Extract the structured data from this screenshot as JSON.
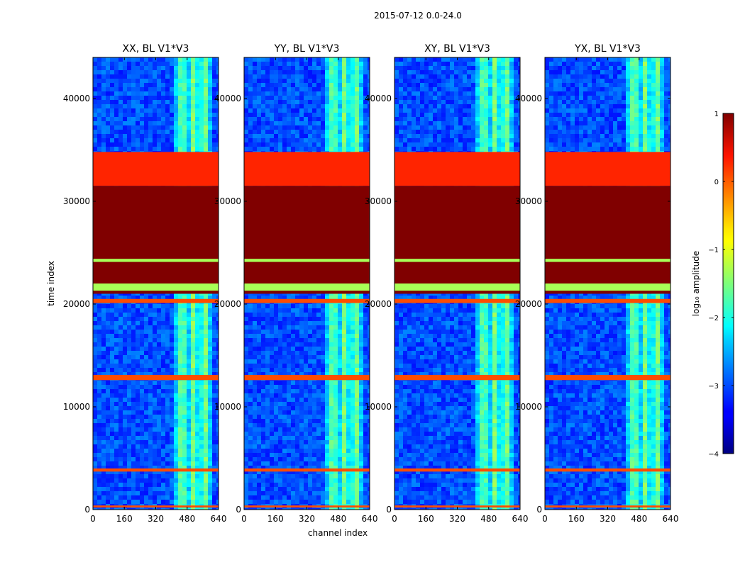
{
  "figure": {
    "suptitle": "2015-07-12 0.0-24.0",
    "xlabel": "channel index",
    "ylabel": "time index"
  },
  "chart_data": {
    "type": "heatmap",
    "x_range": [
      0,
      640
    ],
    "y_range": [
      0,
      44000
    ],
    "xticks": [
      0,
      160,
      320,
      480,
      640
    ],
    "yticks": [
      0,
      10000,
      20000,
      30000,
      40000
    ],
    "panels": [
      {
        "title": "XX, BL V1*V3",
        "pol": "XX"
      },
      {
        "title": "YY, BL V1*V3",
        "pol": "YY"
      },
      {
        "title": "XY, BL V1*V3",
        "pol": "XY"
      },
      {
        "title": "YX, BL V1*V3",
        "pol": "YX"
      }
    ],
    "background_log_amplitude": -3.0,
    "rfi_channel_band": [
      410,
      600
    ],
    "flagged_time_bands": [
      {
        "y0": 31500,
        "y1": 34800,
        "log_amplitude": 0.2
      },
      {
        "y0": 21000,
        "y1": 31500,
        "log_amplitude": 1.0
      },
      {
        "y0": 21300,
        "y1": 22000,
        "log_amplitude": -1.3
      },
      {
        "y0": 24100,
        "y1": 24400,
        "log_amplitude": -1.3
      },
      {
        "y0": 20100,
        "y1": 20500,
        "log_amplitude": 0.0
      },
      {
        "y0": 12600,
        "y1": 13100,
        "log_amplitude": 0.0
      },
      {
        "y0": 3700,
        "y1": 4000,
        "log_amplitude": 0.0
      },
      {
        "y0": 200,
        "y1": 400,
        "log_amplitude": 0.0
      }
    ],
    "colorbar": {
      "label": "log₁₀ amplitude",
      "range": [
        -4,
        1
      ],
      "ticks": [
        -4,
        -3,
        -2,
        -1,
        0,
        1
      ],
      "tick_labels": [
        "−4",
        "−3",
        "−2",
        "−1",
        "0",
        "1"
      ],
      "colormap": "jet"
    }
  }
}
